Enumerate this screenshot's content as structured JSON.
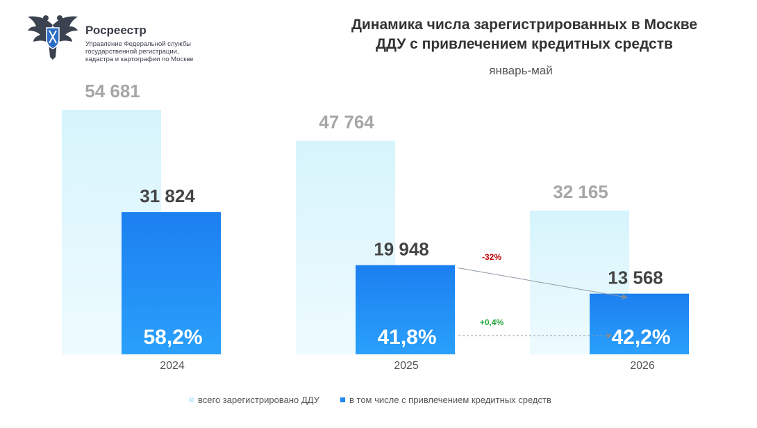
{
  "brand": {
    "name": "Росреестр",
    "subtitle_lines": [
      "Управление Федеральной службы",
      "государственной регистрации,",
      "кадастра и картографии по Москве"
    ]
  },
  "colors": {
    "total": "#dcf6fc",
    "credit": "#1f86f2",
    "text_dark": "#444444",
    "text_gray": "#a6a6a6",
    "negative": "#c00000",
    "positive": "#22a33a"
  },
  "chart_data": {
    "type": "bar",
    "title": "Динамика числа зарегистрированных в Москве ДДУ с привлечением кредитных средств",
    "title_lines": [
      "Динамика числа зарегистрированных в Москве",
      "ДДУ с привлечением кредитных средств"
    ],
    "subtitle": "январь-май",
    "categories": [
      "2024",
      "2025",
      "2026"
    ],
    "series": [
      {
        "name": "всего зарегистрировано ДДУ",
        "values": [
          54681,
          47764,
          32165
        ],
        "labels": [
          "54 681",
          "47 764",
          "32 165"
        ]
      },
      {
        "name": "в том числе с привлечением кредитных средств",
        "values": [
          31824,
          19948,
          13568
        ],
        "labels": [
          "31 824",
          "19 948",
          "13 568"
        ]
      }
    ],
    "share_labels": [
      "58,2%",
      "41,8%",
      "42,2%"
    ],
    "annotations": [
      {
        "text": "-32%",
        "from": "2025",
        "to": "2026",
        "series": "в том числе с привлечением кредитных средств"
      },
      {
        "text": "+0,4%",
        "from": "2025",
        "to": "2026",
        "series": "share"
      }
    ],
    "ylim": [
      0,
      54681
    ],
    "grid": false,
    "legend": "bottom"
  }
}
